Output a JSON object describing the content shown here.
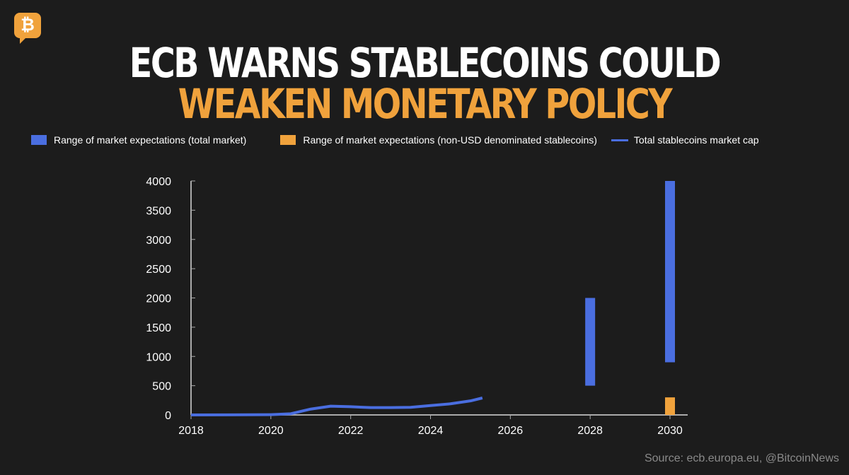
{
  "brand": {
    "logo_glyph": "₿"
  },
  "title": {
    "line1": "ECB WARNS STABLECOINS COULD",
    "line2": "WEAKEN MONETARY POLICY"
  },
  "source": "Source: ecb.europa.eu, @BitcoinNews",
  "colors": {
    "blue": "#4a6ee0",
    "orange": "#f0a23c"
  },
  "chart_data": {
    "type": "line",
    "legend": [
      "Range of market expectations (total market)",
      "Range of market expectations (non-USD denominated stablecoins)",
      "Total stablecoins market cap"
    ],
    "xlim": [
      2018,
      2030.5
    ],
    "ylim": [
      0,
      4000
    ],
    "xticks": [
      "2018",
      "2020",
      "2022",
      "2024",
      "2026",
      "2028",
      "2030"
    ],
    "yticks": [
      "0",
      "500",
      "1000",
      "1500",
      "2000",
      "2500",
      "3000",
      "3500",
      "4000"
    ],
    "line": {
      "name": "Total stablecoins market cap",
      "x": [
        2018,
        2019,
        2020,
        2020.5,
        2021,
        2021.5,
        2022,
        2022.5,
        2023,
        2023.5,
        2024,
        2024.5,
        2025,
        2025.3
      ],
      "y": [
        0,
        2,
        5,
        20,
        100,
        150,
        140,
        125,
        125,
        130,
        160,
        190,
        240,
        290
      ]
    },
    "ranges": [
      {
        "name": "Range of market expectations (total market)",
        "x": 2028,
        "low": 500,
        "high": 2000,
        "color": "blue"
      },
      {
        "name": "Range of market expectations (total market)",
        "x": 2030,
        "low": 900,
        "high": 4000,
        "color": "blue"
      },
      {
        "name": "Range of market expectations (non-USD denominated stablecoins)",
        "x": 2030,
        "low": 0,
        "high": 300,
        "color": "orange"
      }
    ]
  }
}
